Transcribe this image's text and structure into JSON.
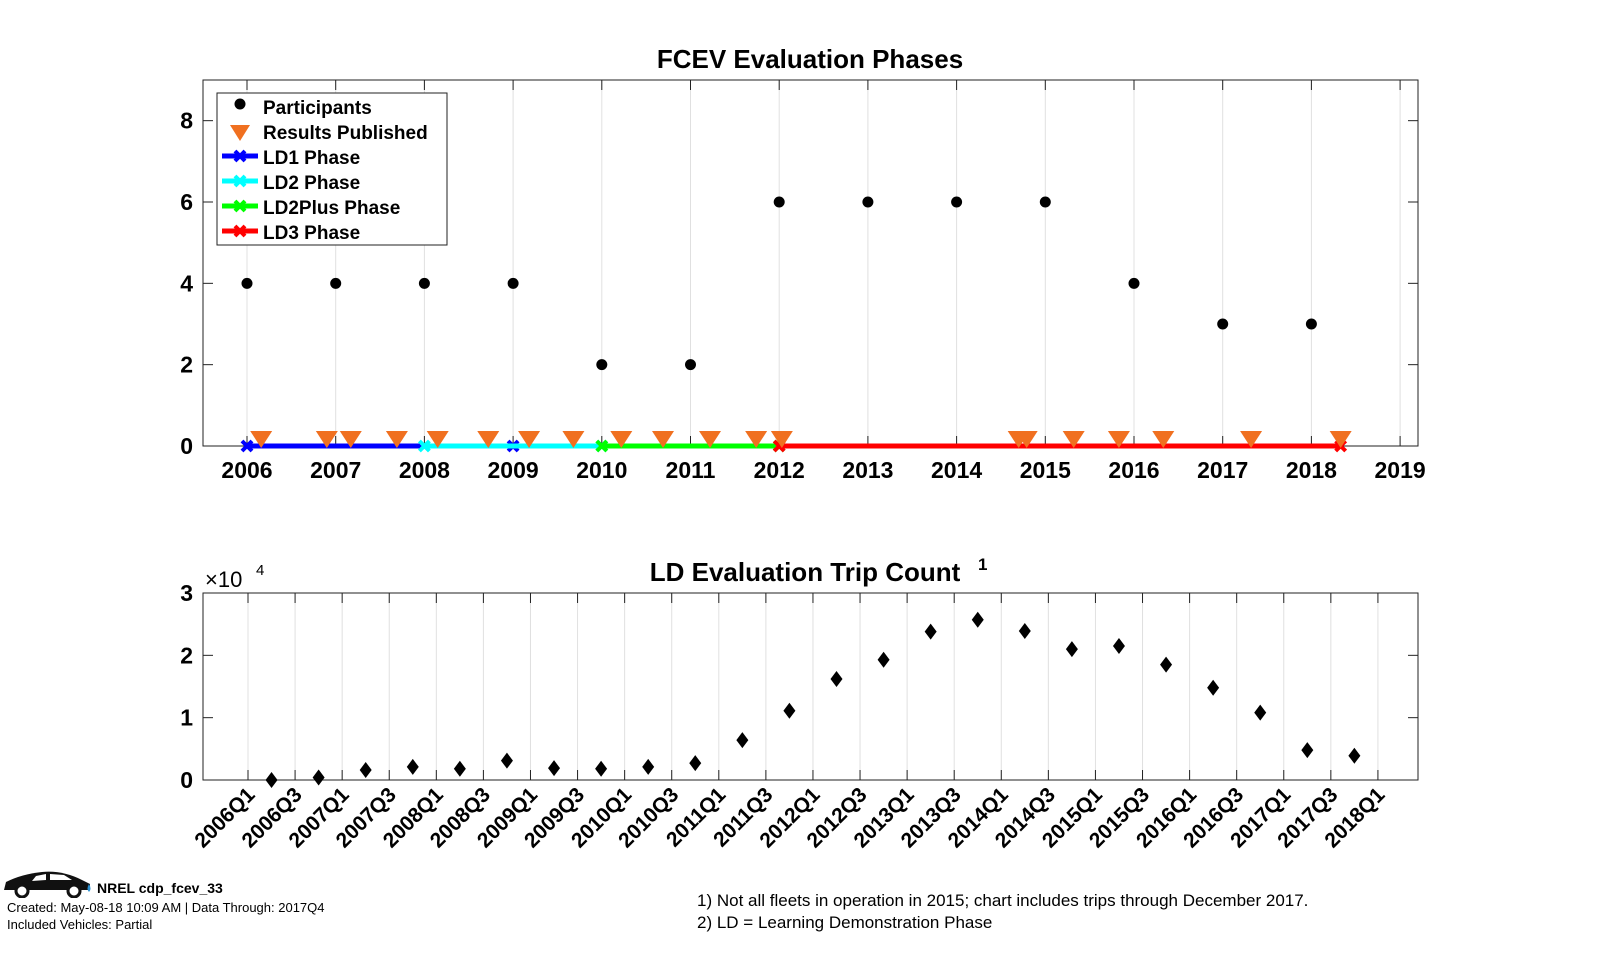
{
  "chart_data": [
    {
      "type": "scatter",
      "title": "FCEV Evaluation Phases",
      "xlim": [
        2005.5,
        2019.2
      ],
      "ylim": [
        0,
        9
      ],
      "xticks": [
        2006,
        2007,
        2008,
        2009,
        2010,
        2011,
        2012,
        2013,
        2014,
        2015,
        2016,
        2017,
        2018,
        2019
      ],
      "yticks": [
        0,
        2,
        4,
        6,
        8
      ],
      "grid": "x",
      "legend_position": "top-left",
      "legend": [
        "Participants",
        "Results Published",
        "LD1 Phase",
        "LD2 Phase",
        "LD2Plus Phase",
        "LD3 Phase"
      ],
      "participants": {
        "x": [
          2006,
          2007,
          2008,
          2009,
          2010,
          2011,
          2012,
          2013,
          2014,
          2015,
          2016,
          2017,
          2018
        ],
        "y": [
          4,
          4,
          4,
          4,
          2,
          2,
          6,
          6,
          6,
          6,
          4,
          3,
          3
        ],
        "color": "#000000"
      },
      "results_published": {
        "x": [
          2006.16,
          2006.9,
          2007.17,
          2007.69,
          2008.15,
          2008.72,
          2009.18,
          2009.68,
          2010.22,
          2010.69,
          2011.22,
          2011.74,
          2012.03,
          2014.7,
          2014.79,
          2015.32,
          2015.83,
          2016.33,
          2017.32,
          2018.33
        ],
        "y": 0,
        "color": "#f07020"
      },
      "phases": [
        {
          "name": "LD1 Phase",
          "start": 2006,
          "end": 2009,
          "color": "#0000ff"
        },
        {
          "name": "LD2 Phase",
          "start": 2008,
          "end": 2010,
          "color": "#00ffff"
        },
        {
          "name": "LD2Plus Phase",
          "start": 2010,
          "end": 2012,
          "color": "#00ff00"
        },
        {
          "name": "LD3 Phase",
          "start": 2012,
          "end": 2018.33,
          "color": "#ff0000"
        }
      ]
    },
    {
      "type": "scatter",
      "title": "LD Evaluation Trip Count",
      "title_superscript": "1",
      "y_multiplier": "×10",
      "y_multiplier_exp": "4",
      "ylim": [
        0,
        3
      ],
      "yticks": [
        0,
        1,
        2,
        3
      ],
      "xtick_labels": [
        "2006Q1",
        "2006Q3",
        "2007Q1",
        "2007Q3",
        "2008Q1",
        "2008Q3",
        "2009Q1",
        "2009Q3",
        "2010Q1",
        "2010Q3",
        "2011Q1",
        "2011Q3",
        "2012Q1",
        "2012Q3",
        "2013Q1",
        "2013Q3",
        "2014Q1",
        "2014Q3",
        "2015Q1",
        "2015Q3",
        "2016Q1",
        "2016Q3",
        "2017Q1",
        "2017Q3",
        "2018Q1"
      ],
      "grid": "x",
      "x_quarter_index": [
        1,
        3,
        5,
        7,
        9,
        11,
        13,
        15,
        17,
        19,
        21,
        23,
        25,
        27,
        29,
        31,
        33,
        35,
        37,
        39,
        41,
        43,
        45,
        47
      ],
      "values": [
        0,
        0.04,
        0.16,
        0.21,
        0.18,
        0.31,
        0.19,
        0.18,
        0.21,
        0.27,
        0.64,
        1.11,
        1.62,
        1.93,
        2.38,
        2.57,
        2.39,
        2.1,
        2.15,
        1.85,
        1.48,
        1.08,
        0.48,
        0.39
      ]
    }
  ],
  "footer": {
    "id": "NREL cdp_fcev_33",
    "created": "Created: May-08-18 10:09 AM | Data Through: 2017Q4",
    "vehicles": "Included Vehicles: Partial"
  },
  "notes": [
    "1) Not all fleets in operation in 2015; chart includes trips through December 2017.",
    "2) LD = Learning Demonstration Phase"
  ]
}
